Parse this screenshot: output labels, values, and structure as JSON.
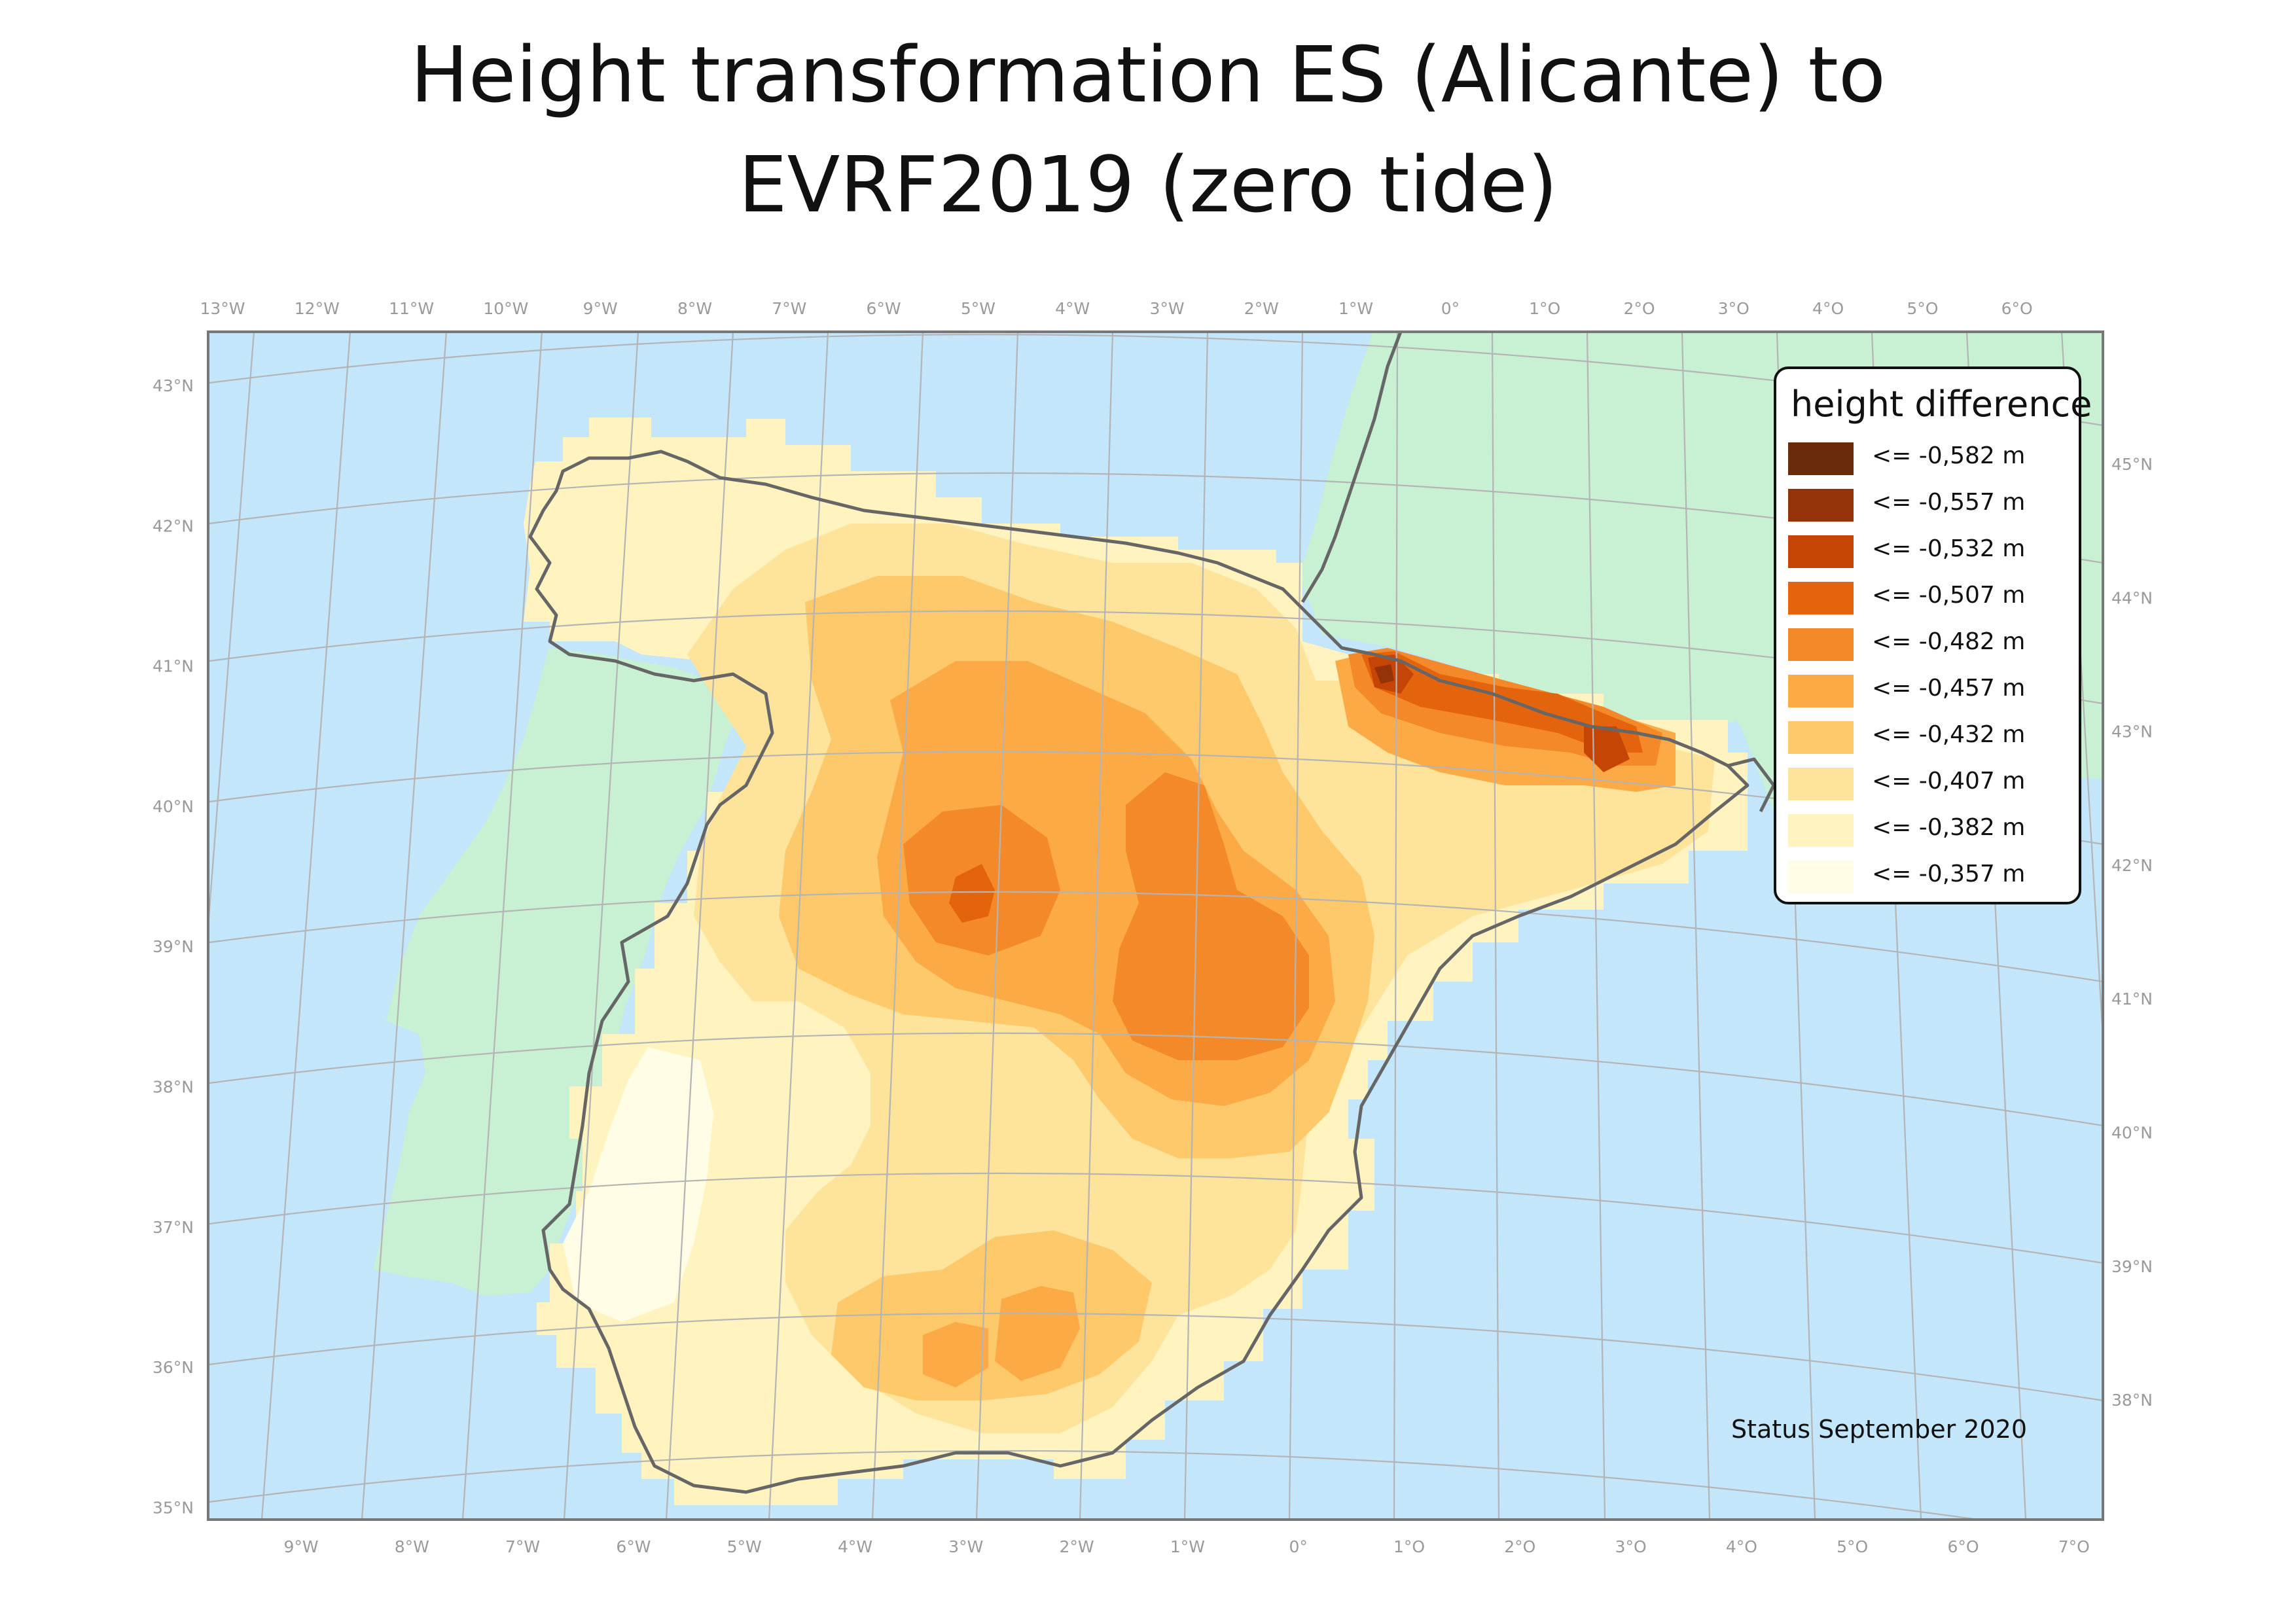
{
  "title": {
    "line1": "Height transformation ES (Alicante) to",
    "line2": "EVRF2019 (zero tide)"
  },
  "legend": {
    "title": "height difference",
    "items": [
      {
        "label": "<= -0,582 m",
        "color": "#6a2a0c"
      },
      {
        "label": "<= -0,557 m",
        "color": "#943309"
      },
      {
        "label": "<= -0,532 m",
        "color": "#c44506"
      },
      {
        "label": "<= -0,507 m",
        "color": "#e4640e"
      },
      {
        "label": "<= -0,482 m",
        "color": "#f4892a"
      },
      {
        "label": "<= -0,457 m",
        "color": "#fbaa45"
      },
      {
        "label": "<= -0,432 m",
        "color": "#fdc96b"
      },
      {
        "label": "<= -0,407 m",
        "color": "#fee39b"
      },
      {
        "label": "<= -0,382 m",
        "color": "#fff4c0"
      },
      {
        "label": "<= -0,357 m",
        "color": "#fffde6"
      }
    ]
  },
  "status": "Status September 2020",
  "colors": {
    "sea": "#c3e6fb",
    "land": "#c8f0d2",
    "border": "#666666",
    "grid": "#b4b4b4"
  },
  "top_ticks": [
    "13°W",
    "12°W",
    "11°W",
    "10°W",
    "9°W",
    "8°W",
    "7°W",
    "6°W",
    "5°W",
    "4°W",
    "3°W",
    "2°W",
    "1°W",
    "0°",
    "1°O",
    "2°O",
    "3°O",
    "4°O",
    "5°O",
    "6°O"
  ],
  "bottom_ticks": [
    "9°W",
    "8°W",
    "7°W",
    "6°W",
    "5°W",
    "4°W",
    "3°W",
    "2°W",
    "1°W",
    "0°",
    "1°O",
    "2°O",
    "3°O",
    "4°O",
    "5°O",
    "6°O",
    "7°O"
  ],
  "left_ticks": [
    "43°N",
    "42°N",
    "41°N",
    "40°N",
    "39°N",
    "38°N",
    "37°N",
    "36°N",
    "35°N"
  ],
  "right_ticks": [
    "45°N",
    "44°N",
    "43°N",
    "42°N",
    "41°N",
    "40°N",
    "39°N",
    "38°N"
  ]
}
